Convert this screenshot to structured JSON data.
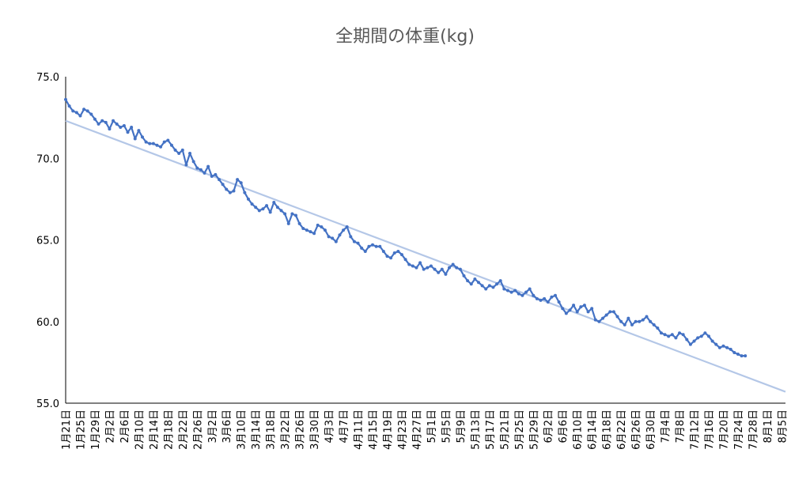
{
  "chart_data": {
    "type": "line",
    "title": "全期間の体重(kg)",
    "xlabel": "",
    "ylabel": "",
    "ylim": [
      55.0,
      75.0
    ],
    "y_ticks": [
      "75.0",
      "70.0",
      "65.0",
      "60.0",
      "55.0"
    ],
    "x_tick_labels": [
      "1月21日",
      "1月25日",
      "1月29日",
      "2月2日",
      "2月6日",
      "2月10日",
      "2月14日",
      "2月18日",
      "2月22日",
      "2月26日",
      "3月2日",
      "3月6日",
      "3月10日",
      "3月14日",
      "3月18日",
      "3月22日",
      "3月26日",
      "3月30日",
      "4月3日",
      "4月7日",
      "4月11日",
      "4月15日",
      "4月19日",
      "4月23日",
      "4月27日",
      "5月1日",
      "5月5日",
      "5月9日",
      "5月13日",
      "5月17日",
      "5月21日",
      "5月25日",
      "5月29日",
      "6月2日",
      "6月6日",
      "6月10日",
      "6月14日",
      "6月18日",
      "6月22日",
      "6月26日",
      "6月30日",
      "7月4日",
      "7月8日",
      "7月12日",
      "7月16日",
      "7月20日",
      "7月24日",
      "7月28日",
      "8月1日",
      "8月5日"
    ],
    "day_count": 198,
    "series": [
      {
        "values": [
          73.6,
          73.2,
          72.9,
          72.8,
          72.6,
          73.0,
          72.9,
          72.7,
          72.4,
          72.1,
          72.3,
          72.2,
          71.8,
          72.3,
          72.1,
          71.9,
          72.0,
          71.6,
          71.9,
          71.2,
          71.7,
          71.3,
          71.0,
          70.9,
          70.9,
          70.8,
          70.7,
          71.0,
          71.1,
          70.8,
          70.5,
          70.3,
          70.5,
          69.6,
          70.3,
          69.8,
          69.4,
          69.3,
          69.1,
          69.5,
          68.9,
          69.0,
          68.7,
          68.4,
          68.1,
          67.9,
          68.0,
          68.7,
          68.5,
          67.9,
          67.5,
          67.2,
          67.0,
          66.8,
          66.9,
          67.1,
          66.7,
          67.3,
          67.0,
          66.8,
          66.6,
          66.0,
          66.6,
          66.5,
          66.0,
          65.7,
          65.6,
          65.5,
          65.4,
          65.9,
          65.8,
          65.6,
          65.2,
          65.1,
          64.9,
          65.3,
          65.6,
          65.8,
          65.2,
          64.9,
          64.8,
          64.5,
          64.3,
          64.6,
          64.7,
          64.6,
          64.6,
          64.3,
          64.0,
          63.9,
          64.2,
          64.3,
          64.1,
          63.8,
          63.5,
          63.4,
          63.3,
          63.6,
          63.2,
          63.3,
          63.4,
          63.2,
          63.0,
          63.2,
          62.9,
          63.3,
          63.5,
          63.3,
          63.2,
          62.8,
          62.5,
          62.3,
          62.6,
          62.4,
          62.2,
          62.0,
          62.2,
          62.1,
          62.3,
          62.5,
          62.0,
          61.9,
          61.8,
          61.9,
          61.7,
          61.6,
          61.8,
          62.0,
          61.6,
          61.4,
          61.3,
          61.4,
          61.2,
          61.5,
          61.6,
          61.2,
          60.8,
          60.5,
          60.7,
          61.0,
          60.6,
          60.9,
          61.0,
          60.6,
          60.8,
          60.1,
          60.0,
          60.2,
          60.4,
          60.6,
          60.6,
          60.3,
          60.0,
          59.8,
          60.2,
          59.8,
          60.0,
          60.0,
          60.1,
          60.3,
          60.0,
          59.8,
          59.6,
          59.3,
          59.2,
          59.1,
          59.2,
          59.0,
          59.3,
          59.2,
          58.9,
          58.6,
          58.8,
          59.0,
          59.1,
          59.3,
          59.1,
          58.8,
          58.6,
          58.4,
          58.5,
          58.4,
          58.3,
          58.1,
          58.0,
          57.9,
          57.9
        ],
        "x_start_index": 0
      },
      {
        "name": "trend",
        "type": "linear-trend",
        "start_value": 72.3,
        "end_value": 55.7,
        "x_start_index": 0,
        "x_end_index": 197
      }
    ],
    "colors": {
      "series": "#4472c4",
      "trend": "#b4c7e7",
      "axis": "#000000",
      "text": "#000000",
      "title": "#595959"
    },
    "grid": false,
    "legend": "none"
  }
}
